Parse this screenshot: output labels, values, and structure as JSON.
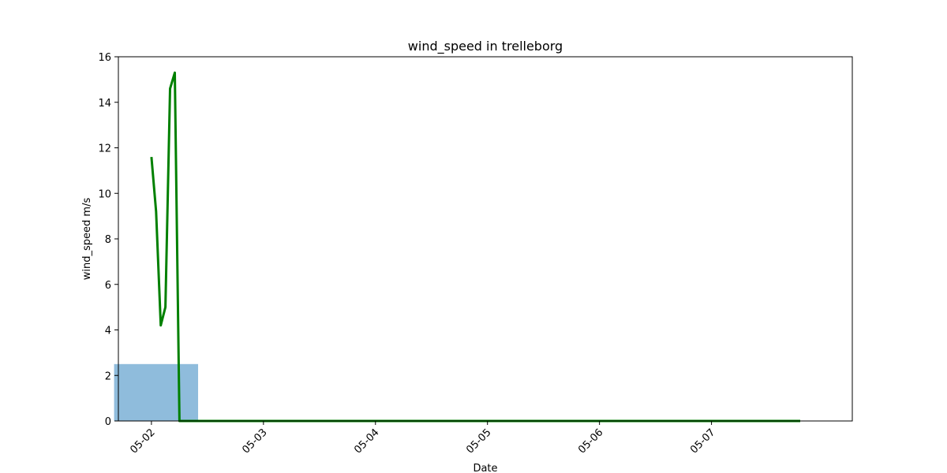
{
  "chart_data": {
    "type": "line",
    "title": "wind_speed in trelleborg",
    "xlabel": "Date",
    "ylabel": "wind_speed m/s",
    "xlim": [
      "2023-05-01T16:55",
      "2023-05-08T06:10"
    ],
    "ylim": [
      0,
      16
    ],
    "x_ticks": [
      {
        "label": "05-02",
        "date": "2023-05-02T00:00"
      },
      {
        "label": "05-03",
        "date": "2023-05-03T00:00"
      },
      {
        "label": "05-04",
        "date": "2023-05-04T00:00"
      },
      {
        "label": "05-05",
        "date": "2023-05-05T00:00"
      },
      {
        "label": "05-06",
        "date": "2023-05-06T00:00"
      },
      {
        "label": "05-07",
        "date": "2023-05-07T00:00"
      }
    ],
    "y_ticks": [
      0,
      2,
      4,
      6,
      8,
      10,
      12,
      14,
      16
    ],
    "grid": false,
    "series": [
      {
        "kind": "line",
        "color": "#008000",
        "points": [
          {
            "x": "2023-05-02T00:00",
            "y": 11.6
          },
          {
            "x": "2023-05-02T01:00",
            "y": 9.2
          },
          {
            "x": "2023-05-02T02:00",
            "y": 4.2
          },
          {
            "x": "2023-05-02T03:00",
            "y": 5.0
          },
          {
            "x": "2023-05-02T04:00",
            "y": 14.6
          },
          {
            "x": "2023-05-02T05:00",
            "y": 15.3
          },
          {
            "x": "2023-05-02T06:00",
            "y": 0.0
          },
          {
            "x": "2023-05-07T19:00",
            "y": 0.0
          }
        ]
      },
      {
        "kind": "bar",
        "color": "#8fbcdc",
        "bars": [
          {
            "start": "2023-05-01T16:00",
            "end": "2023-05-02T10:00",
            "value": 2.5
          }
        ]
      }
    ]
  }
}
